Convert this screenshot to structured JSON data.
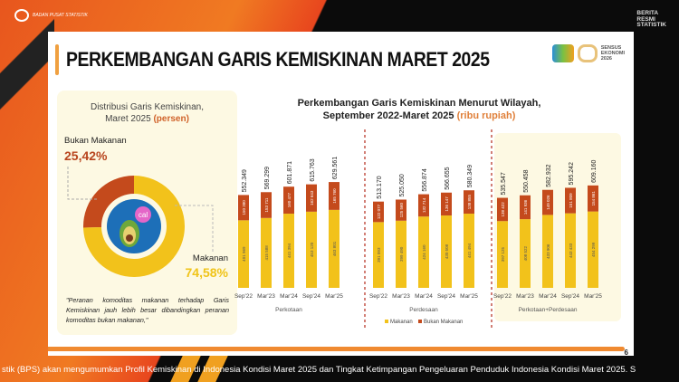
{
  "header": {
    "brand": "BADAN PUSAT STATISTIK",
    "corner": [
      "BERITA",
      "RESMI",
      "STATISTIK"
    ]
  },
  "slide": {
    "title": "PERKEMBANGAN GARIS KEMISKINAN MARET 2025",
    "sensus": [
      "SENSUS",
      "EKONOMI",
      "2026"
    ],
    "page": "6"
  },
  "distribution": {
    "title_line1": "Distribusi Garis Kemiskinan,",
    "title_line2": "Maret 2025 ",
    "title_unit": "(persen)",
    "non_food_label": "Bukan Makanan",
    "non_food_value": "25,42%",
    "food_label": "Makanan",
    "food_value": "74,58%",
    "icon_text": "cal",
    "quote": "\"Peranan komoditas makanan terhadap Garis Kemiskinan jauh lebih besar dibandingkan peranan komoditas bukan makanan,\""
  },
  "chart_data": [
    {
      "type": "pie",
      "series": [
        {
          "name": "Bukan Makanan",
          "value": 25.42
        },
        {
          "name": "Makanan",
          "value": 74.58
        }
      ],
      "colors": [
        "#c44a1c",
        "#f2c21b"
      ]
    },
    {
      "type": "bar",
      "stacked": true,
      "title_line1": "Perkembangan Garis Kemiskinan Menurut Wilayah,",
      "title_line2": "September 2022-Maret 2025 ",
      "title_unit": "(ribu rupiah)",
      "categories": [
        "Sep'22",
        "Mar'23",
        "Mar'24",
        "Sep'24",
        "Mar'25"
      ],
      "legend": [
        "Makanan",
        "Bukan Makanan"
      ],
      "legend_placement": "bottom",
      "colors": {
        "Makanan": "#f2c21b",
        "Bukan Makanan": "#c44a1c"
      },
      "groups": [
        {
          "name": "Perkotaan",
          "makanan": [
            401969,
            415588,
            441394,
            453120,
            463801
          ],
          "bukan_makanan": [
            150380,
            153711,
            160477,
            162643,
            165760
          ],
          "total": [
            "552.349",
            "569.299",
            "601.871",
            "615.763",
            "629.561"
          ]
        },
        {
          "name": "Perdesaan",
          "makanan": [
            391093,
            399490,
            424160,
            430508,
            441494
          ],
          "bukan_makanan": [
            122077,
            125560,
            132714,
            136147,
            138855
          ],
          "total": [
            "513.170",
            "525.050",
            "556.874",
            "566.655",
            "580.349"
          ]
        },
        {
          "name": "Perkotaan+Perdesaan",
          "makanan": [
            397125,
            408522,
            433906,
            443433,
            454299
          ],
          "bukan_makanan": [
            138422,
            141936,
            149026,
            151809,
            154861
          ],
          "total": [
            "535.547",
            "550.458",
            "582.932",
            "595.242",
            "609.160"
          ]
        }
      ]
    }
  ],
  "ticker": "stik (BPS) akan mengumumkan Profil Kemiskinan di Indonesia Kondisi Maret 2025 dan Tingkat Ketimpangan Pengeluaran Penduduk Indonesia Kondisi Maret 2025. S"
}
